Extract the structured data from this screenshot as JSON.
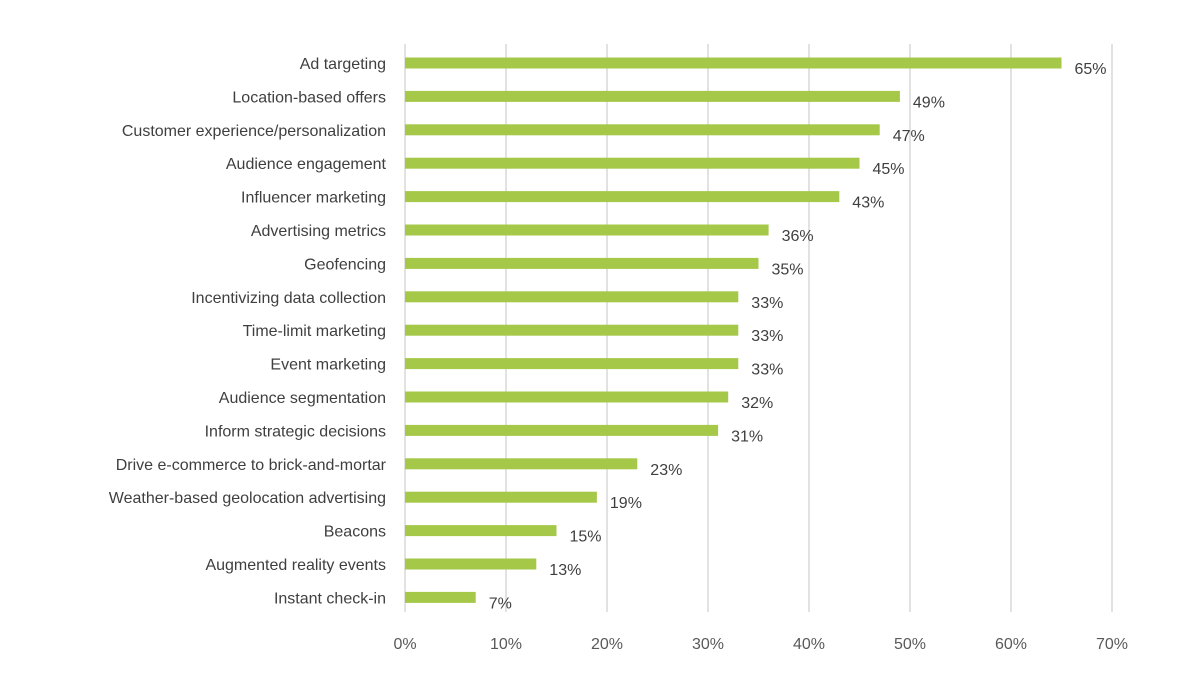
{
  "chart_data": {
    "type": "bar",
    "orientation": "horizontal",
    "title": "",
    "xlabel": "",
    "ylabel": "",
    "xlim": [
      0,
      70
    ],
    "x_ticks": [
      "0%",
      "10%",
      "20%",
      "30%",
      "40%",
      "50%",
      "60%",
      "70%"
    ],
    "x_tick_values": [
      0,
      10,
      20,
      30,
      40,
      50,
      60,
      70
    ],
    "grid": "vertical",
    "legend": "none",
    "bar_color": "#a5c849",
    "categories": [
      "Ad targeting",
      "Location-based offers",
      "Customer experience/personalization",
      "Audience engagement",
      "Influencer marketing",
      "Advertising metrics",
      "Geofencing",
      "Incentivizing data collection",
      "Time-limit marketing",
      "Event marketing",
      "Audience segmentation",
      "Inform strategic decisions",
      "Drive e-commerce to brick-and-mortar",
      "Weather-based geolocation advertising",
      "Beacons",
      "Augmented reality events",
      "Instant check-in"
    ],
    "values": [
      65,
      49,
      47,
      45,
      43,
      36,
      35,
      33,
      33,
      33,
      32,
      31,
      23,
      19,
      15,
      13,
      7
    ],
    "data_labels": [
      "65%",
      "49%",
      "47%",
      "45%",
      "43%",
      "36%",
      "35%",
      "33%",
      "33%",
      "33%",
      "32%",
      "31%",
      "23%",
      "19%",
      "15%",
      "13%",
      "7%"
    ]
  }
}
